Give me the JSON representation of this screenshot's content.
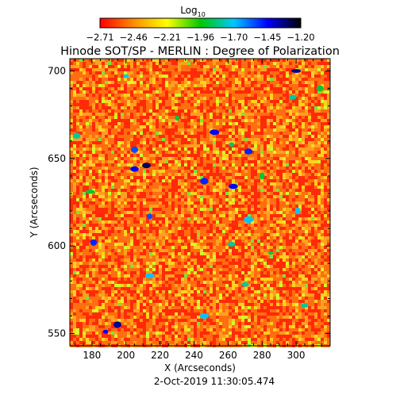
{
  "chart_data": {
    "type": "heatmap",
    "title": "Hinode SOT/SP - MERLIN : Degree of Polarization",
    "colorbar": {
      "label": "Log",
      "label_subscript": "10",
      "ticks": [
        "−2.71",
        "−2.46",
        "−2.21",
        "−1.96",
        "−1.70",
        "−1.45",
        "−1.20"
      ],
      "range": [
        -2.71,
        -1.2
      ],
      "colors": [
        "#ff0000",
        "#ff8c00",
        "#ffff00",
        "#00c800",
        "#00c8ff",
        "#0000ff",
        "#000000"
      ]
    },
    "xlabel": "X (Arcseconds)",
    "ylabel": "Y (Arcseconds)",
    "xlim": [
      167,
      320
    ],
    "ylim": [
      543,
      707
    ],
    "x_ticks": [
      "180",
      "200",
      "220",
      "240",
      "260",
      "280",
      "300"
    ],
    "y_ticks": [
      "550",
      "600",
      "650",
      "700"
    ],
    "footer": "2-Oct-2019 11:30:05.474",
    "features": [
      {
        "x": 205,
        "y": 655,
        "value": -1.55
      },
      {
        "x": 212,
        "y": 646,
        "value": -1.3
      },
      {
        "x": 205,
        "y": 644,
        "value": -1.45
      },
      {
        "x": 252,
        "y": 665,
        "value": -1.45
      },
      {
        "x": 262,
        "y": 658,
        "value": -1.85
      },
      {
        "x": 272,
        "y": 654,
        "value": -1.5
      },
      {
        "x": 300,
        "y": 700,
        "value": -1.35
      },
      {
        "x": 298,
        "y": 685,
        "value": -1.8
      },
      {
        "x": 200,
        "y": 697,
        "value": -1.7
      },
      {
        "x": 246,
        "y": 637,
        "value": -1.5
      },
      {
        "x": 263,
        "y": 634,
        "value": -1.45
      },
      {
        "x": 280,
        "y": 640,
        "value": -1.9
      },
      {
        "x": 272,
        "y": 615,
        "value": -1.7
      },
      {
        "x": 262,
        "y": 601,
        "value": -1.8
      },
      {
        "x": 285,
        "y": 596,
        "value": -1.9
      },
      {
        "x": 301,
        "y": 620,
        "value": -1.7
      },
      {
        "x": 214,
        "y": 617,
        "value": -1.55
      },
      {
        "x": 181,
        "y": 602,
        "value": -1.5
      },
      {
        "x": 179,
        "y": 631,
        "value": -1.9
      },
      {
        "x": 270,
        "y": 578,
        "value": -1.8
      },
      {
        "x": 214,
        "y": 583,
        "value": -1.7
      },
      {
        "x": 188,
        "y": 551,
        "value": -1.45
      },
      {
        "x": 195,
        "y": 555,
        "value": -1.35
      },
      {
        "x": 246,
        "y": 560,
        "value": -1.7
      },
      {
        "x": 305,
        "y": 566,
        "value": -1.8
      },
      {
        "x": 314,
        "y": 690,
        "value": -1.9
      },
      {
        "x": 171,
        "y": 663,
        "value": -1.8
      },
      {
        "x": 230,
        "y": 673,
        "value": -1.9
      }
    ]
  }
}
